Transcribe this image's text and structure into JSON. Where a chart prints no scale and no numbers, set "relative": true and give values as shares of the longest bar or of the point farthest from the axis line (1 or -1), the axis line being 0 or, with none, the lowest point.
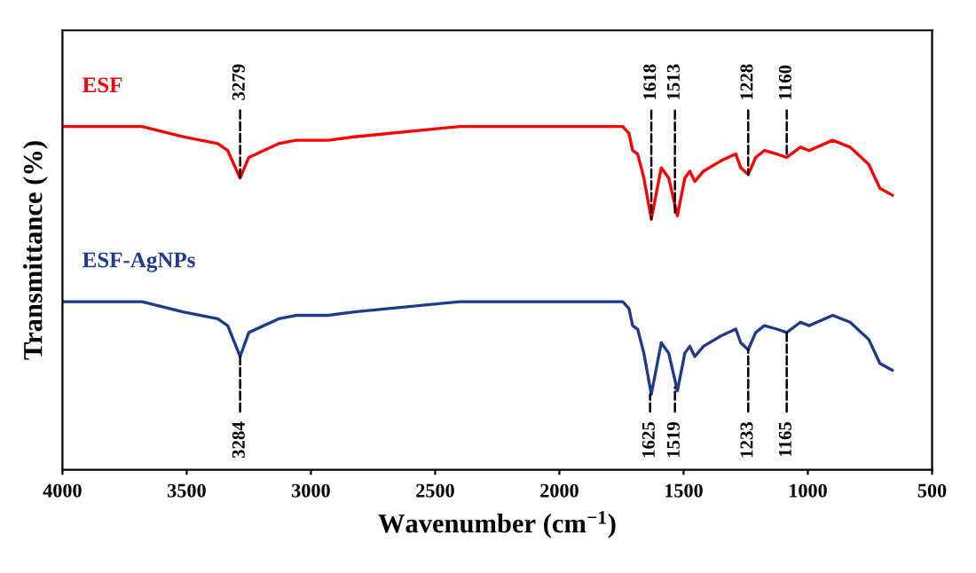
{
  "chart_data": {
    "type": "line",
    "relative": true,
    "xlabel": "Wavenumber (cm$^{−1}$)",
    "ylabel": "Transmittance (%)",
    "xlim": [
      4000,
      500
    ],
    "xticks": [
      4000,
      3500,
      3000,
      2500,
      2000,
      1500,
      1000,
      500
    ],
    "grid": false,
    "legend": false,
    "line_style": "solid",
    "marker": "none",
    "tick_labels": "x",
    "x": [
      4000,
      3680,
      3515,
      3375,
      3335,
      3285,
      3250,
      3130,
      3060,
      2990,
      2930,
      2825,
      2400,
      2040,
      1745,
      1720,
      1705,
      1685,
      1660,
      1630,
      1590,
      1560,
      1525,
      1495,
      1475,
      1455,
      1420,
      1350,
      1290,
      1270,
      1240,
      1210,
      1175,
      1125,
      1085,
      1030,
      995,
      900,
      830,
      755,
      710,
      660
    ],
    "series": [
      {
        "name": "ESF",
        "color": "#ff0000",
        "values": [
          1.0,
          1.0,
          0.97,
          0.95,
          0.93,
          0.85,
          0.91,
          0.95,
          0.96,
          0.96,
          0.96,
          0.97,
          1.0,
          1.0,
          1.0,
          0.98,
          0.93,
          0.92,
          0.85,
          0.73,
          0.88,
          0.85,
          0.74,
          0.85,
          0.87,
          0.84,
          0.87,
          0.9,
          0.92,
          0.88,
          0.86,
          0.91,
          0.93,
          0.92,
          0.91,
          0.94,
          0.93,
          0.96,
          0.94,
          0.89,
          0.82,
          0.8
        ]
      },
      {
        "name": "ESF-AgNPs",
        "color": "#1f3a8a",
        "values": [
          0.49,
          0.49,
          0.46,
          0.44,
          0.42,
          0.33,
          0.4,
          0.44,
          0.45,
          0.45,
          0.45,
          0.46,
          0.49,
          0.49,
          0.49,
          0.47,
          0.42,
          0.41,
          0.34,
          0.22,
          0.37,
          0.34,
          0.23,
          0.34,
          0.36,
          0.33,
          0.36,
          0.39,
          0.41,
          0.37,
          0.35,
          0.4,
          0.42,
          0.41,
          0.4,
          0.43,
          0.42,
          0.45,
          0.43,
          0.38,
          0.31,
          0.29
        ]
      }
    ],
    "annotations": [
      {
        "text": "3279",
        "x": 3285,
        "y": 0.85
      },
      {
        "text": "1618",
        "x": 1630,
        "y": 0.73
      },
      {
        "text": "1513",
        "x": 1535,
        "y": 0.75
      },
      {
        "text": "1228",
        "x": 1240,
        "y": 0.86
      },
      {
        "text": "1160",
        "x": 1085,
        "y": 0.91
      },
      {
        "text": "3284",
        "x": 3285,
        "y": 0.33
      },
      {
        "text": "1625",
        "x": 1635,
        "y": 0.22
      },
      {
        "text": "1519",
        "x": 1535,
        "y": 0.24
      },
      {
        "text": "1233",
        "x": 1240,
        "y": 0.35
      },
      {
        "text": "1165",
        "x": 1085,
        "y": 0.4
      }
    ]
  }
}
